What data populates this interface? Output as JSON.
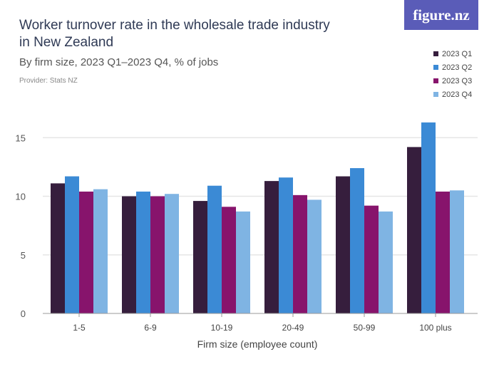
{
  "header": {
    "title": "Worker turnover rate in the wholesale trade industry in New Zealand",
    "subtitle": "By firm size, 2023 Q1–2023 Q4, % of jobs",
    "provider": "Provider: Stats NZ",
    "logo": "figure.nz"
  },
  "chart_data": {
    "type": "bar",
    "title": "Worker turnover rate in the wholesale trade industry in New Zealand",
    "xlabel": "Firm size (employee count)",
    "ylabel": "",
    "ylim": [
      0,
      17
    ],
    "yticks": [
      0,
      5,
      10,
      15
    ],
    "grid": true,
    "legend_position": "top-right",
    "categories": [
      "1-5",
      "6-9",
      "10-19",
      "20-49",
      "50-99",
      "100 plus"
    ],
    "series": [
      {
        "name": "2023 Q1",
        "color": "#361e3d",
        "values": [
          11.1,
          10.0,
          9.6,
          11.3,
          11.7,
          14.2
        ]
      },
      {
        "name": "2023 Q2",
        "color": "#3b8ad5",
        "values": [
          11.7,
          10.4,
          10.9,
          11.6,
          12.4,
          16.3
        ]
      },
      {
        "name": "2023 Q3",
        "color": "#87146c",
        "values": [
          10.4,
          10.0,
          9.1,
          10.1,
          9.2,
          10.4
        ]
      },
      {
        "name": "2023 Q4",
        "color": "#7fb4e3",
        "values": [
          10.6,
          10.2,
          8.7,
          9.7,
          8.7,
          10.5
        ]
      }
    ]
  }
}
